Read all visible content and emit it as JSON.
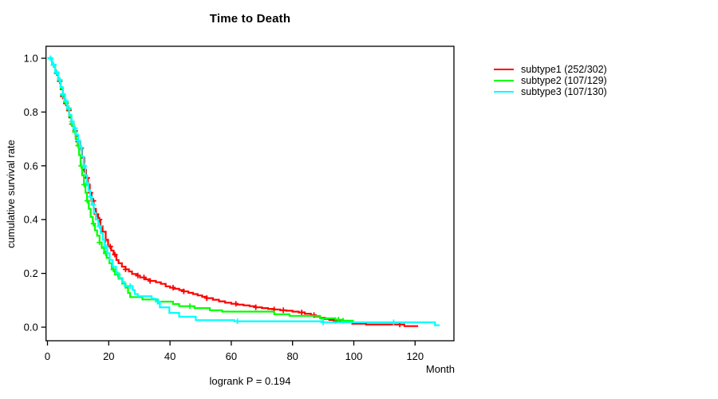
{
  "chart": {
    "title": "Time to Death",
    "footnote": "logrank P = 0.194"
  },
  "chart_data": {
    "type": "line",
    "variant": "kaplan-meier-step",
    "title": "Time to Death",
    "xlabel": "Month",
    "ylabel": "cumulative survival rate",
    "xlim": [
      0,
      132
    ],
    "ylim": [
      0,
      1
    ],
    "x_ticks": [
      0,
      20,
      40,
      60,
      80,
      100,
      120
    ],
    "y_ticks": [
      0.0,
      0.2,
      0.4,
      0.6,
      0.8,
      1.0
    ],
    "y_tick_labels": [
      "0.0",
      "0.2",
      "0.4",
      "0.6",
      "0.8",
      "1.0"
    ],
    "grid": false,
    "legend_position": "right-outside",
    "annotation": "logrank P = 0.194",
    "axis_color": "#000000",
    "series": [
      {
        "name": "subtype1",
        "label": "subtype1 (252/302)",
        "color": "#FF0000",
        "n_events": 252,
        "n_total": 302,
        "end_time": 121,
        "points": [
          [
            1.5,
            0.975
          ],
          [
            2.5,
            0.945
          ],
          [
            3.5,
            0.915
          ],
          [
            4.3,
            0.885
          ],
          [
            5,
            0.858
          ],
          [
            5.7,
            0.832
          ],
          [
            6.4,
            0.806
          ],
          [
            7.1,
            0.78
          ],
          [
            7.8,
            0.755
          ],
          [
            8.5,
            0.73
          ],
          [
            9.2,
            0.71
          ],
          [
            10,
            0.69
          ],
          [
            10.7,
            0.665
          ],
          [
            11.3,
            0.63
          ],
          [
            12,
            0.585
          ],
          [
            12.6,
            0.555
          ],
          [
            13.2,
            0.53
          ],
          [
            13.8,
            0.5
          ],
          [
            14.4,
            0.47
          ],
          [
            15.1,
            0.44
          ],
          [
            15.8,
            0.42
          ],
          [
            16.5,
            0.4
          ],
          [
            17.3,
            0.375
          ],
          [
            18,
            0.355
          ],
          [
            19,
            0.325
          ],
          [
            19.8,
            0.3
          ],
          [
            20.8,
            0.285
          ],
          [
            21.6,
            0.27
          ],
          [
            22.5,
            0.25
          ],
          [
            23.2,
            0.238
          ],
          [
            24.3,
            0.225
          ],
          [
            25.5,
            0.215
          ],
          [
            26.6,
            0.207
          ],
          [
            27.6,
            0.198
          ],
          [
            29,
            0.192
          ],
          [
            30.2,
            0.185
          ],
          [
            32,
            0.178
          ],
          [
            33.5,
            0.172
          ],
          [
            35.4,
            0.167
          ],
          [
            37,
            0.161
          ],
          [
            38.6,
            0.152
          ],
          [
            40,
            0.147
          ],
          [
            41.5,
            0.143
          ],
          [
            43,
            0.138
          ],
          [
            44.5,
            0.133
          ],
          [
            46,
            0.128
          ],
          [
            47.5,
            0.123
          ],
          [
            49,
            0.118
          ],
          [
            50.5,
            0.113
          ],
          [
            52,
            0.108
          ],
          [
            54,
            0.102
          ],
          [
            56,
            0.096
          ],
          [
            58,
            0.091
          ],
          [
            60,
            0.087
          ],
          [
            62,
            0.084
          ],
          [
            64,
            0.081
          ],
          [
            66,
            0.078
          ],
          [
            68,
            0.074
          ],
          [
            70,
            0.071
          ],
          [
            72,
            0.068
          ],
          [
            74,
            0.066
          ],
          [
            76,
            0.063
          ],
          [
            78,
            0.061
          ],
          [
            80,
            0.058
          ],
          [
            82,
            0.055
          ],
          [
            84,
            0.05
          ],
          [
            86,
            0.045
          ],
          [
            87.5,
            0.04
          ],
          [
            89,
            0.035
          ],
          [
            90.5,
            0.031
          ],
          [
            92,
            0.027
          ],
          [
            94,
            0.024
          ],
          [
            96.5,
            0.021
          ],
          [
            99.5,
            0.013
          ],
          [
            104,
            0.01
          ],
          [
            116.5,
            0.004
          ]
        ],
        "censor_times": [
          2,
          3,
          4,
          5,
          6,
          7,
          8,
          9,
          10,
          11,
          12,
          13,
          14,
          15,
          16,
          17,
          18,
          19,
          20.5,
          22,
          25.5,
          29.5,
          31.5,
          33.5,
          41,
          44.5,
          52,
          61.5,
          68,
          74,
          77,
          83,
          87,
          94,
          115
        ]
      },
      {
        "name": "subtype2",
        "label": "subtype2 (107/129)",
        "color": "#00FF00",
        "n_events": 107,
        "n_total": 129,
        "end_time": 100,
        "points": [
          [
            1.5,
            0.975
          ],
          [
            2.5,
            0.947
          ],
          [
            3.5,
            0.918
          ],
          [
            4.3,
            0.888
          ],
          [
            5,
            0.862
          ],
          [
            5.7,
            0.836
          ],
          [
            6.4,
            0.81
          ],
          [
            7.1,
            0.784
          ],
          [
            7.8,
            0.756
          ],
          [
            8.5,
            0.726
          ],
          [
            9.2,
            0.7
          ],
          [
            9.8,
            0.675
          ],
          [
            10.3,
            0.64
          ],
          [
            10.8,
            0.6
          ],
          [
            11.3,
            0.565
          ],
          [
            11.9,
            0.53
          ],
          [
            12.4,
            0.5
          ],
          [
            12.9,
            0.47
          ],
          [
            13.5,
            0.44
          ],
          [
            14.1,
            0.41
          ],
          [
            14.8,
            0.385
          ],
          [
            15.5,
            0.36
          ],
          [
            16.2,
            0.34
          ],
          [
            17,
            0.315
          ],
          [
            17.7,
            0.295
          ],
          [
            18.5,
            0.275
          ],
          [
            19.3,
            0.258
          ],
          [
            20.2,
            0.238
          ],
          [
            21,
            0.215
          ],
          [
            22,
            0.196
          ],
          [
            23.2,
            0.18
          ],
          [
            24.4,
            0.162
          ],
          [
            25.5,
            0.147
          ],
          [
            26.3,
            0.127
          ],
          [
            27,
            0.112
          ],
          [
            31,
            0.103
          ],
          [
            36,
            0.095
          ],
          [
            41,
            0.086
          ],
          [
            43,
            0.078
          ],
          [
            48,
            0.071
          ],
          [
            53,
            0.063
          ],
          [
            57,
            0.058
          ],
          [
            74,
            0.048
          ],
          [
            79,
            0.042
          ],
          [
            89,
            0.033
          ],
          [
            94,
            0.028
          ],
          [
            96.5,
            0.024
          ]
        ],
        "censor_times": [
          1,
          2,
          3,
          4,
          5,
          6,
          7,
          8,
          9,
          10,
          11,
          12,
          13,
          15,
          17,
          19,
          21.5,
          23,
          36,
          46.5,
          95,
          96.5
        ]
      },
      {
        "name": "subtype3",
        "label": "subtype3 (107/130)",
        "color": "#00FFFF",
        "n_events": 107,
        "n_total": 130,
        "end_time": 128,
        "points": [
          [
            1.5,
            0.976
          ],
          [
            2.5,
            0.948
          ],
          [
            3.5,
            0.92
          ],
          [
            4.3,
            0.893
          ],
          [
            5,
            0.867
          ],
          [
            5.7,
            0.841
          ],
          [
            6.4,
            0.815
          ],
          [
            7.1,
            0.79
          ],
          [
            7.8,
            0.765
          ],
          [
            8.5,
            0.74
          ],
          [
            9.2,
            0.716
          ],
          [
            10,
            0.694
          ],
          [
            10.6,
            0.668
          ],
          [
            11.2,
            0.634
          ],
          [
            11.8,
            0.6
          ],
          [
            12.4,
            0.565
          ],
          [
            12.9,
            0.535
          ],
          [
            13.4,
            0.51
          ],
          [
            13.9,
            0.485
          ],
          [
            14.5,
            0.455
          ],
          [
            15.1,
            0.425
          ],
          [
            15.8,
            0.4
          ],
          [
            16.6,
            0.375
          ],
          [
            17.4,
            0.35
          ],
          [
            18.1,
            0.325
          ],
          [
            18.7,
            0.3
          ],
          [
            19.5,
            0.275
          ],
          [
            20.3,
            0.25
          ],
          [
            21.3,
            0.225
          ],
          [
            22.4,
            0.2
          ],
          [
            23.5,
            0.183
          ],
          [
            24.5,
            0.168
          ],
          [
            25.2,
            0.153
          ],
          [
            27.8,
            0.138
          ],
          [
            28.5,
            0.123
          ],
          [
            29.5,
            0.115
          ],
          [
            34,
            0.106
          ],
          [
            35.4,
            0.095
          ],
          [
            36.7,
            0.074
          ],
          [
            39.8,
            0.053
          ],
          [
            43,
            0.039
          ],
          [
            48.4,
            0.026
          ],
          [
            61,
            0.022
          ],
          [
            90,
            0.018
          ],
          [
            126.5,
            0.007
          ]
        ],
        "censor_times": [
          1,
          2,
          3,
          4,
          5,
          6,
          7,
          8,
          9,
          10,
          11,
          12,
          13,
          14,
          15,
          17,
          19,
          27,
          36.2,
          62,
          90,
          113
        ]
      }
    ]
  }
}
